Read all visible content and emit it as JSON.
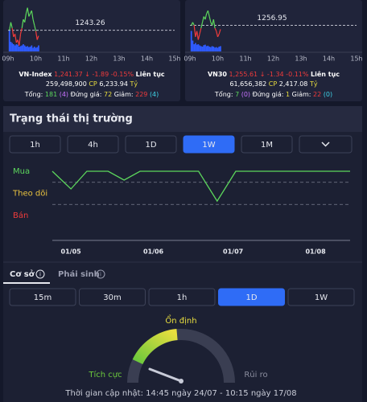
{
  "cards": [
    {
      "name": "VN-Index",
      "price": "1,241.37",
      "change": "↓ -1.89 -0.15%",
      "status": "Liên tục",
      "volume": "259,498,900",
      "volume_unit": "CP",
      "value": "6,233.94",
      "value_unit": "Tỷ",
      "total_label": "Tổng:",
      "up": "181",
      "up_ceiling": "(4)",
      "flat_label": "Đứng giá:",
      "flat": "72",
      "down_label": "Giảm:",
      "down": "229",
      "down_floor": "(4)",
      "chart": {
        "reference": 1243.26,
        "xlim": [
          9,
          15
        ],
        "ylim": [
          1236,
          1252
        ],
        "vlim": [
          0,
          100
        ],
        "xticks": [
          {
            "value": 9,
            "label": "09h"
          },
          {
            "value": 10,
            "label": "10h"
          },
          {
            "value": 11,
            "label": "11h"
          },
          {
            "value": 12,
            "label": "12h"
          },
          {
            "value": 13,
            "label": "13h"
          },
          {
            "value": 14,
            "label": "14h"
          },
          {
            "value": 15,
            "label": "15h"
          }
        ],
        "x": [
          9.05,
          9.1,
          9.15,
          9.2,
          9.25,
          9.3,
          9.35,
          9.4,
          9.45,
          9.5,
          9.55,
          9.6,
          9.65,
          9.7,
          9.75,
          9.8,
          9.85,
          9.9,
          9.95,
          10.0,
          10.05,
          10.1
        ],
        "values": [
          1243.3,
          1246,
          1244,
          1241,
          1242,
          1239,
          1240,
          1238,
          1242,
          1244,
          1247,
          1246,
          1249,
          1251,
          1248,
          1249,
          1250,
          1247,
          1245,
          1243,
          1240,
          1241.37
        ],
        "volumes": [
          90,
          40,
          35,
          30,
          25,
          30,
          28,
          20,
          22,
          25,
          30,
          25,
          20,
          22,
          18,
          20,
          25,
          15,
          20,
          15,
          18,
          25
        ]
      }
    },
    {
      "name": "VN30",
      "price": "1,255.61",
      "change": "↓ -1.34 -0.11%",
      "status": "Liên tục",
      "volume": "61,656,382",
      "volume_unit": "CP",
      "value": "2,417.08",
      "value_unit": "Tỷ",
      "total_label": "Tổng:",
      "up": "7",
      "up_ceiling": "(0)",
      "flat_label": "Đứng giá:",
      "flat": "1",
      "down_label": "Giảm:",
      "down": "22",
      "down_floor": "(0)",
      "chart": {
        "reference": 1256.95,
        "xlim": [
          9,
          15
        ],
        "ylim": [
          1248,
          1264
        ],
        "vlim": [
          0,
          100
        ],
        "xticks": [
          {
            "value": 9,
            "label": "09h"
          },
          {
            "value": 10,
            "label": "10h"
          },
          {
            "value": 11,
            "label": "11h"
          },
          {
            "value": 12,
            "label": "12h"
          },
          {
            "value": 13,
            "label": "13h"
          },
          {
            "value": 14,
            "label": "14h"
          },
          {
            "value": 15,
            "label": "15h"
          }
        ],
        "x": [
          9.05,
          9.1,
          9.15,
          9.2,
          9.25,
          9.3,
          9.35,
          9.4,
          9.45,
          9.5,
          9.55,
          9.6,
          9.65,
          9.7,
          9.75,
          9.8,
          9.85,
          9.9,
          9.95,
          10.0,
          10.05,
          10.1
        ],
        "values": [
          1256.9,
          1258,
          1257,
          1253,
          1255,
          1252,
          1254,
          1256,
          1258,
          1260,
          1259,
          1261,
          1262,
          1260,
          1258,
          1257,
          1259,
          1256,
          1255,
          1253,
          1254,
          1255.61
        ],
        "volumes": [
          85,
          45,
          30,
          35,
          28,
          30,
          25,
          22,
          20,
          26,
          28,
          22,
          24,
          20,
          18,
          22,
          20,
          16,
          18,
          15,
          20,
          22
        ]
      }
    }
  ],
  "section_title": "Trạng thái thị trường",
  "period_tabs": [
    "1h",
    "4h",
    "1D",
    "1W",
    "1M"
  ],
  "active_period": "1W",
  "status_chart": {
    "yticks": [
      {
        "value": 2,
        "label": "Mua"
      },
      {
        "value": 1,
        "label": "Theo dõi"
      },
      {
        "value": 0,
        "label": "Bán"
      }
    ],
    "ylim": [
      0,
      2
    ],
    "xlim": [
      -7,
      105
    ],
    "xticks": [
      {
        "value": 0,
        "label": "01/05"
      },
      {
        "value": 31,
        "label": "01/06"
      },
      {
        "value": 61,
        "label": "01/07"
      },
      {
        "value": 92,
        "label": "01/08"
      }
    ],
    "x": [
      -7,
      0,
      6,
      14,
      20,
      26,
      48,
      55,
      62,
      69,
      105
    ],
    "values": [
      2,
      1.2,
      2,
      2,
      1.6,
      2,
      2,
      0.65,
      2,
      2,
      2
    ]
  },
  "market_tabs": [
    "Cơ sở",
    "Phái sinh"
  ],
  "gauge_tabs": [
    "15m",
    "30m",
    "1h",
    "1D",
    "1W"
  ],
  "active_gauge_tab": "1D",
  "gauge": {
    "top_label": "Ổn định",
    "left_label": "Tích cực",
    "right_label": "Rủi ro"
  },
  "footer": "Thời gian cập nhật: 14:45 ngày 24/07 - 10:15 ngày 17/08"
}
